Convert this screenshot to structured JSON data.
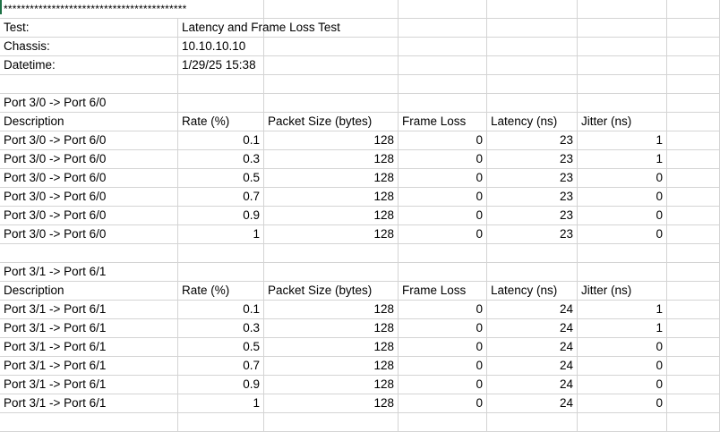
{
  "banner": "******************************************",
  "meta": [
    {
      "label": "Test:",
      "value": "Latency and Frame Loss Test"
    },
    {
      "label": "Chassis:",
      "value": "10.10.10.10"
    },
    {
      "label": "Datetime:",
      "value": "1/29/25 15:38"
    }
  ],
  "columns": [
    "Description",
    "Rate (%)",
    "Packet Size (bytes)",
    "Frame Loss",
    "Latency (ns)",
    "Jitter (ns)"
  ],
  "sections": [
    {
      "title": "Port 3/0 -> Port 6/0",
      "rows": [
        [
          "Port 3/0 -> Port 6/0",
          "0.1",
          "128",
          "0",
          "23",
          "1"
        ],
        [
          "Port 3/0 -> Port 6/0",
          "0.3",
          "128",
          "0",
          "23",
          "1"
        ],
        [
          "Port 3/0 -> Port 6/0",
          "0.5",
          "128",
          "0",
          "23",
          "0"
        ],
        [
          "Port 3/0 -> Port 6/0",
          "0.7",
          "128",
          "0",
          "23",
          "0"
        ],
        [
          "Port 3/0 -> Port 6/0",
          "0.9",
          "128",
          "0",
          "23",
          "0"
        ],
        [
          "Port 3/0 -> Port 6/0",
          "1",
          "128",
          "0",
          "23",
          "0"
        ]
      ]
    },
    {
      "title": "Port 3/1 -> Port 6/1",
      "rows": [
        [
          "Port 3/1 -> Port 6/1",
          "0.1",
          "128",
          "0",
          "24",
          "1"
        ],
        [
          "Port 3/1 -> Port 6/1",
          "0.3",
          "128",
          "0",
          "24",
          "1"
        ],
        [
          "Port 3/1 -> Port 6/1",
          "0.5",
          "128",
          "0",
          "24",
          "0"
        ],
        [
          "Port 3/1 -> Port 6/1",
          "0.7",
          "128",
          "0",
          "24",
          "0"
        ],
        [
          "Port 3/1 -> Port 6/1",
          "0.9",
          "128",
          "0",
          "24",
          "0"
        ],
        [
          "Port 3/1 -> Port 6/1",
          "1",
          "128",
          "0",
          "24",
          "0"
        ]
      ]
    }
  ]
}
